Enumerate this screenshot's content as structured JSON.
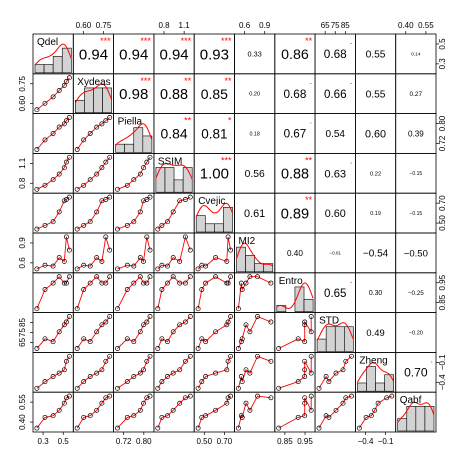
{
  "chart_data": {
    "type": "scatterplot-matrix",
    "variables": [
      "Qdel",
      "Xydeas",
      "Piella",
      "SSIM",
      "Cvejic",
      "MI2",
      "Entro",
      "STD",
      "Zheng",
      "Qabf"
    ],
    "observations": {
      "Qdel": [
        0.28,
        0.36,
        0.44,
        0.5,
        0.55,
        0.57,
        0.6
      ],
      "Xydeas": [
        0.52,
        0.57,
        0.62,
        0.67,
        0.71,
        0.74,
        0.77
      ],
      "Piella": [
        0.71,
        0.74,
        0.76,
        0.78,
        0.79,
        0.8,
        0.81
      ],
      "SSIM": [
        0.78,
        0.83,
        0.9,
        0.97,
        1.05,
        1.12,
        1.18
      ],
      "Cvejic": [
        0.46,
        0.49,
        0.52,
        0.6,
        0.69,
        0.7,
        0.72
      ],
      "MI2": [
        0.58,
        0.62,
        0.61,
        0.7,
        0.66,
        0.92,
        0.78
      ],
      "Entro": [
        0.92,
        0.95,
        0.96,
        0.97,
        0.96,
        0.96,
        0.97
      ],
      "STD": [
        63,
        70,
        68,
        75,
        80,
        82,
        86
      ],
      "Zheng": [
        -0.4,
        -0.32,
        -0.26,
        -0.22,
        -0.18,
        -0.08,
        -0.02
      ],
      "Qabf": [
        0.38,
        0.44,
        0.45,
        0.48,
        0.52,
        0.55,
        0.56
      ]
    },
    "correlations": [
      {
        "row": 0,
        "col": 1,
        "r": "0.94",
        "stars": "***"
      },
      {
        "row": 0,
        "col": 2,
        "r": "0.94",
        "stars": "***"
      },
      {
        "row": 0,
        "col": 3,
        "r": "0.94",
        "stars": "***"
      },
      {
        "row": 0,
        "col": 4,
        "r": "0.93",
        "stars": "***"
      },
      {
        "row": 0,
        "col": 5,
        "r": "0.33",
        "stars": ""
      },
      {
        "row": 0,
        "col": 6,
        "r": "0.86",
        "stars": "**"
      },
      {
        "row": 0,
        "col": 7,
        "r": "0.68",
        "stars": "."
      },
      {
        "row": 0,
        "col": 8,
        "r": "0.55",
        "stars": ""
      },
      {
        "row": 0,
        "col": 9,
        "r": "0.14",
        "stars": ""
      },
      {
        "row": 1,
        "col": 2,
        "r": "0.98",
        "stars": "***"
      },
      {
        "row": 1,
        "col": 3,
        "r": "0.88",
        "stars": "**"
      },
      {
        "row": 1,
        "col": 4,
        "r": "0.85",
        "stars": "**"
      },
      {
        "row": 1,
        "col": 5,
        "r": "0.20",
        "stars": ""
      },
      {
        "row": 1,
        "col": 6,
        "r": "0.68",
        "stars": "."
      },
      {
        "row": 1,
        "col": 7,
        "r": "0.66",
        "stars": "."
      },
      {
        "row": 1,
        "col": 8,
        "r": "0.55",
        "stars": ""
      },
      {
        "row": 1,
        "col": 9,
        "r": "0.27",
        "stars": ""
      },
      {
        "row": 2,
        "col": 3,
        "r": "0.84",
        "stars": "**"
      },
      {
        "row": 2,
        "col": 4,
        "r": "0.81",
        "stars": "*"
      },
      {
        "row": 2,
        "col": 5,
        "r": "0.18",
        "stars": ""
      },
      {
        "row": 2,
        "col": 6,
        "r": "0.67",
        "stars": "."
      },
      {
        "row": 2,
        "col": 7,
        "r": "0.54",
        "stars": ""
      },
      {
        "row": 2,
        "col": 8,
        "r": "0.60",
        "stars": ""
      },
      {
        "row": 2,
        "col": 9,
        "r": "0.39",
        "stars": ""
      },
      {
        "row": 3,
        "col": 4,
        "r": "1.00",
        "stars": "***"
      },
      {
        "row": 3,
        "col": 5,
        "r": "0.56",
        "stars": ""
      },
      {
        "row": 3,
        "col": 6,
        "r": "0.88",
        "stars": "**"
      },
      {
        "row": 3,
        "col": 7,
        "r": "0.63",
        "stars": "."
      },
      {
        "row": 3,
        "col": 8,
        "r": "0.22",
        "stars": ""
      },
      {
        "row": 3,
        "col": 9,
        "r": "−0.15",
        "stars": ""
      },
      {
        "row": 4,
        "col": 5,
        "r": "0.61",
        "stars": ""
      },
      {
        "row": 4,
        "col": 6,
        "r": "0.89",
        "stars": "**"
      },
      {
        "row": 4,
        "col": 7,
        "r": "0.60",
        "stars": ""
      },
      {
        "row": 4,
        "col": 8,
        "r": "0.19",
        "stars": ""
      },
      {
        "row": 4,
        "col": 9,
        "r": "−0.15",
        "stars": ""
      },
      {
        "row": 5,
        "col": 6,
        "r": "0.40",
        "stars": ""
      },
      {
        "row": 5,
        "col": 7,
        "r": "−0.01",
        "stars": ""
      },
      {
        "row": 5,
        "col": 8,
        "r": "−0.54",
        "stars": ""
      },
      {
        "row": 5,
        "col": 9,
        "r": "−0.50",
        "stars": ""
      },
      {
        "row": 6,
        "col": 7,
        "r": "0.65",
        "stars": "."
      },
      {
        "row": 6,
        "col": 8,
        "r": "0.30",
        "stars": ""
      },
      {
        "row": 6,
        "col": 9,
        "r": "−0.25",
        "stars": ""
      },
      {
        "row": 7,
        "col": 8,
        "r": "0.49",
        "stars": ""
      },
      {
        "row": 7,
        "col": 9,
        "r": "−0.20",
        "stars": ""
      },
      {
        "row": 8,
        "col": 9,
        "r": "0.70",
        "stars": "."
      }
    ],
    "ticks": {
      "top": [
        {
          "col": 1,
          "labels": [
            "0.60",
            "0.75"
          ]
        },
        {
          "col": 3,
          "labels": [
            "0.8",
            "1.1"
          ]
        },
        {
          "col": 5,
          "labels": [
            "0.6",
            "0.9"
          ]
        },
        {
          "col": 7,
          "labels": [
            "65",
            "75",
            "85"
          ]
        },
        {
          "col": 9,
          "labels": [
            "0.40",
            "0.55"
          ]
        }
      ],
      "bottom": [
        {
          "col": 0,
          "labels": [
            "0.3",
            "0.5"
          ]
        },
        {
          "col": 2,
          "labels": [
            "0.72",
            "0.80"
          ]
        },
        {
          "col": 4,
          "labels": [
            "0.50",
            "0.70"
          ]
        },
        {
          "col": 6,
          "labels": [
            "0.85",
            "0.95"
          ]
        },
        {
          "col": 8,
          "labels": [
            "−0.4",
            "−0.1"
          ]
        }
      ],
      "left": [
        {
          "row": 1,
          "labels": [
            "0.60",
            "0.75"
          ]
        },
        {
          "row": 3,
          "labels": [
            "0.8",
            "1.1"
          ]
        },
        {
          "row": 5,
          "labels": [
            "0.6",
            "0.9"
          ]
        },
        {
          "row": 7,
          "labels": [
            "65",
            "75",
            "85"
          ]
        },
        {
          "row": 9,
          "labels": [
            "0.40",
            "0.55"
          ]
        }
      ],
      "right": [
        {
          "row": 0,
          "labels": [
            "0.3",
            "0.5"
          ]
        },
        {
          "row": 2,
          "labels": [
            "0.72",
            "0.80"
          ]
        },
        {
          "row": 4,
          "labels": [
            "0.50",
            "0.70"
          ]
        },
        {
          "row": 6,
          "labels": [
            "0.85",
            "0.95"
          ]
        },
        {
          "row": 8,
          "labels": [
            "−0.4",
            "−0.1"
          ]
        }
      ]
    },
    "colors": {
      "histogram_fill": "#d3d3d3",
      "density_line": "#ff0000",
      "smooth_line": "#ff0000",
      "stars": "#ff0000",
      "points": "#000000",
      "text": "#000000"
    },
    "grid": false,
    "legend": "none"
  }
}
